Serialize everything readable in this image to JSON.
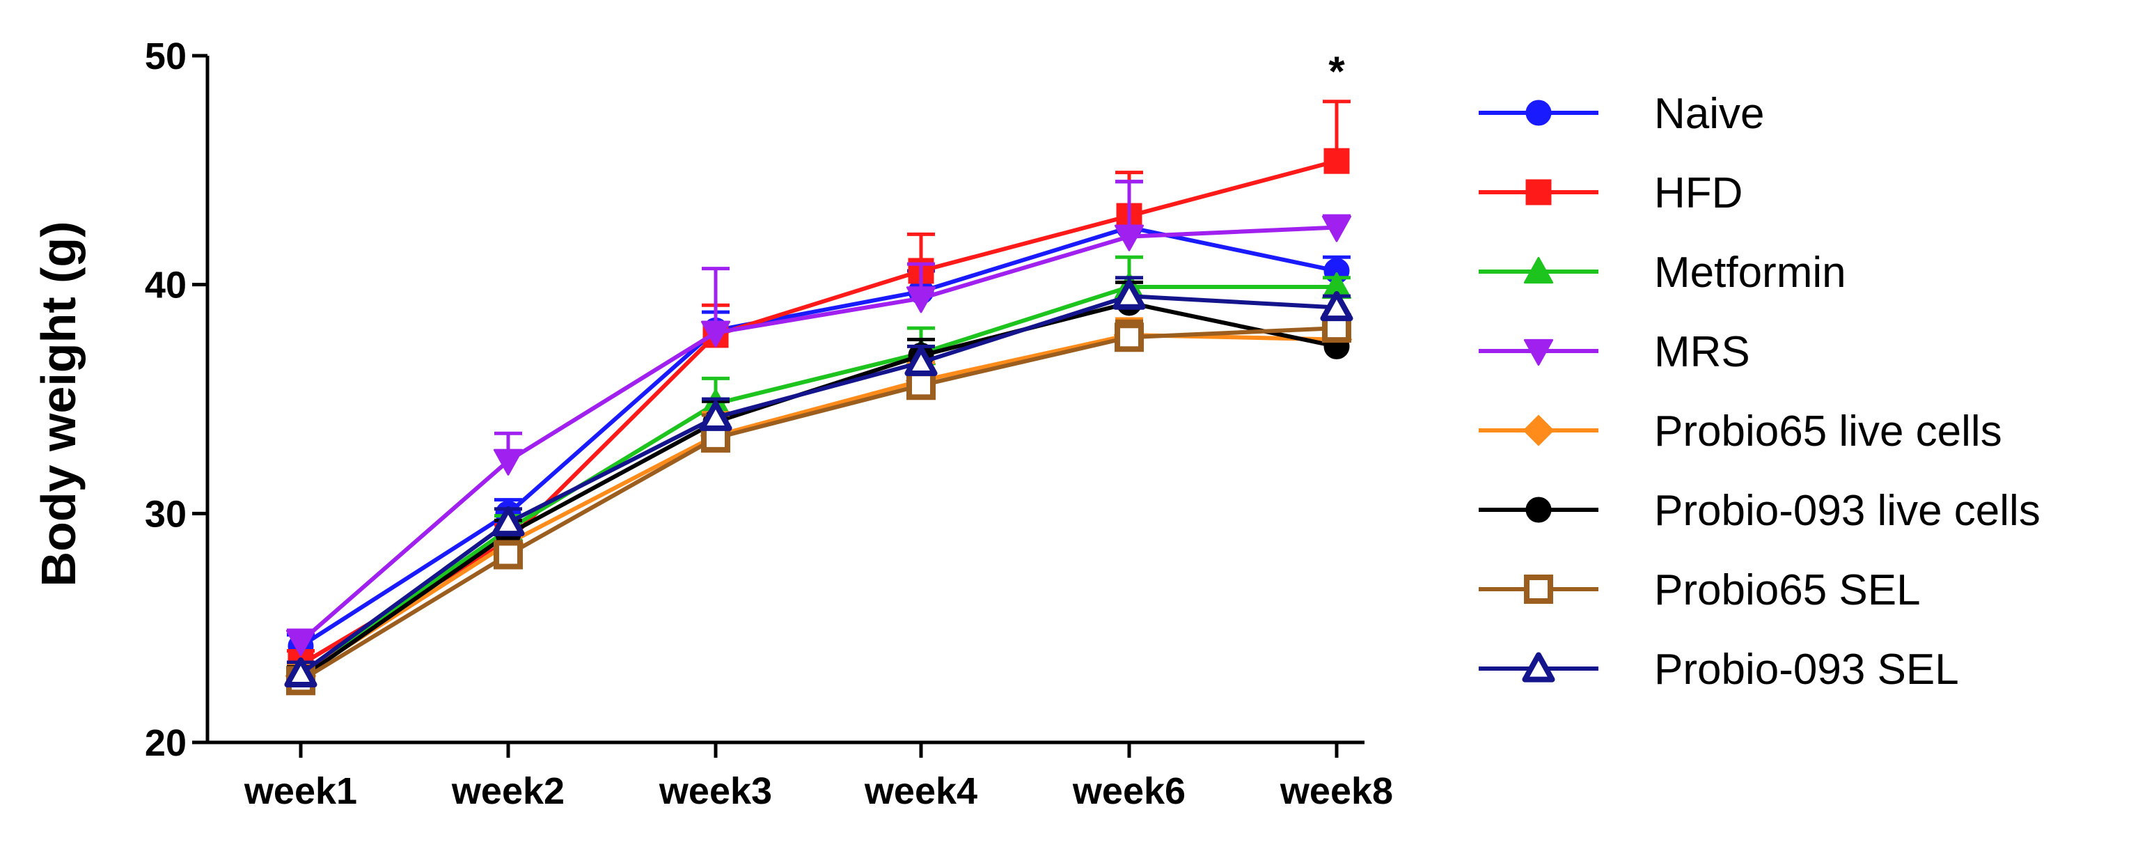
{
  "chart_data": {
    "type": "line",
    "title": "",
    "xlabel": "",
    "ylabel": "Body weight (g)",
    "ylim": [
      20,
      50
    ],
    "yticks": [
      20,
      30,
      40,
      50
    ],
    "categories": [
      "week1",
      "week2",
      "week3",
      "week4",
      "week6",
      "week8"
    ],
    "annotations": [
      {
        "text": "*",
        "category": "week8",
        "y": 49.6
      }
    ],
    "series": [
      {
        "name": "Naive",
        "color": "#1a1aff",
        "marker": "circle",
        "filled": true,
        "values": [
          24.2,
          30.0,
          38.0,
          39.7,
          42.5,
          40.6
        ],
        "errors": [
          0.5,
          0.6,
          0.8,
          0.9,
          2.0,
          0.6
        ]
      },
      {
        "name": "HFD",
        "color": "#ff1a1a",
        "marker": "square",
        "filled": true,
        "values": [
          23.4,
          28.8,
          37.8,
          40.6,
          43.0,
          45.4
        ],
        "errors": [
          0.6,
          0.7,
          1.3,
          1.6,
          1.9,
          2.6
        ]
      },
      {
        "name": "Metformin",
        "color": "#1ec41e",
        "marker": "triangle-up",
        "filled": true,
        "values": [
          23.0,
          29.3,
          34.8,
          37.0,
          39.9,
          39.9
        ],
        "errors": [
          0.5,
          0.6,
          1.1,
          1.1,
          1.3,
          0.4
        ]
      },
      {
        "name": "MRS",
        "color": "#a020f0",
        "marker": "triangle-down",
        "filled": true,
        "values": [
          24.4,
          32.3,
          37.9,
          39.4,
          42.1,
          42.5
        ],
        "errors": [
          0.5,
          1.2,
          2.8,
          1.5,
          2.4,
          0.5
        ]
      },
      {
        "name": "Probio65 live cells",
        "color": "#ff8c1a",
        "marker": "diamond",
        "filled": true,
        "values": [
          22.9,
          28.7,
          33.4,
          35.8,
          37.8,
          37.6
        ],
        "errors": [
          0.5,
          0.6,
          1.0,
          0.8,
          0.7,
          0.5
        ]
      },
      {
        "name": "Probio-093 live cells",
        "color": "#000000",
        "marker": "circle",
        "filled": true,
        "values": [
          22.8,
          29.1,
          34.0,
          36.9,
          39.2,
          37.3
        ],
        "errors": [
          0.5,
          0.6,
          0.9,
          0.7,
          0.9,
          0.5
        ]
      },
      {
        "name": "Probio65 SEL",
        "color": "#9c5e1e",
        "marker": "square",
        "filled": false,
        "values": [
          22.7,
          28.2,
          33.3,
          35.6,
          37.7,
          38.1
        ],
        "errors": [
          0.5,
          0.5,
          1.0,
          0.7,
          0.7,
          0.5
        ]
      },
      {
        "name": "Probio-093 SEL",
        "color": "#14148c",
        "marker": "triangle-up",
        "filled": false,
        "values": [
          23.0,
          29.6,
          34.2,
          36.6,
          39.5,
          39.0
        ],
        "errors": [
          0.5,
          0.6,
          0.8,
          0.7,
          0.8,
          0.5
        ]
      }
    ]
  }
}
